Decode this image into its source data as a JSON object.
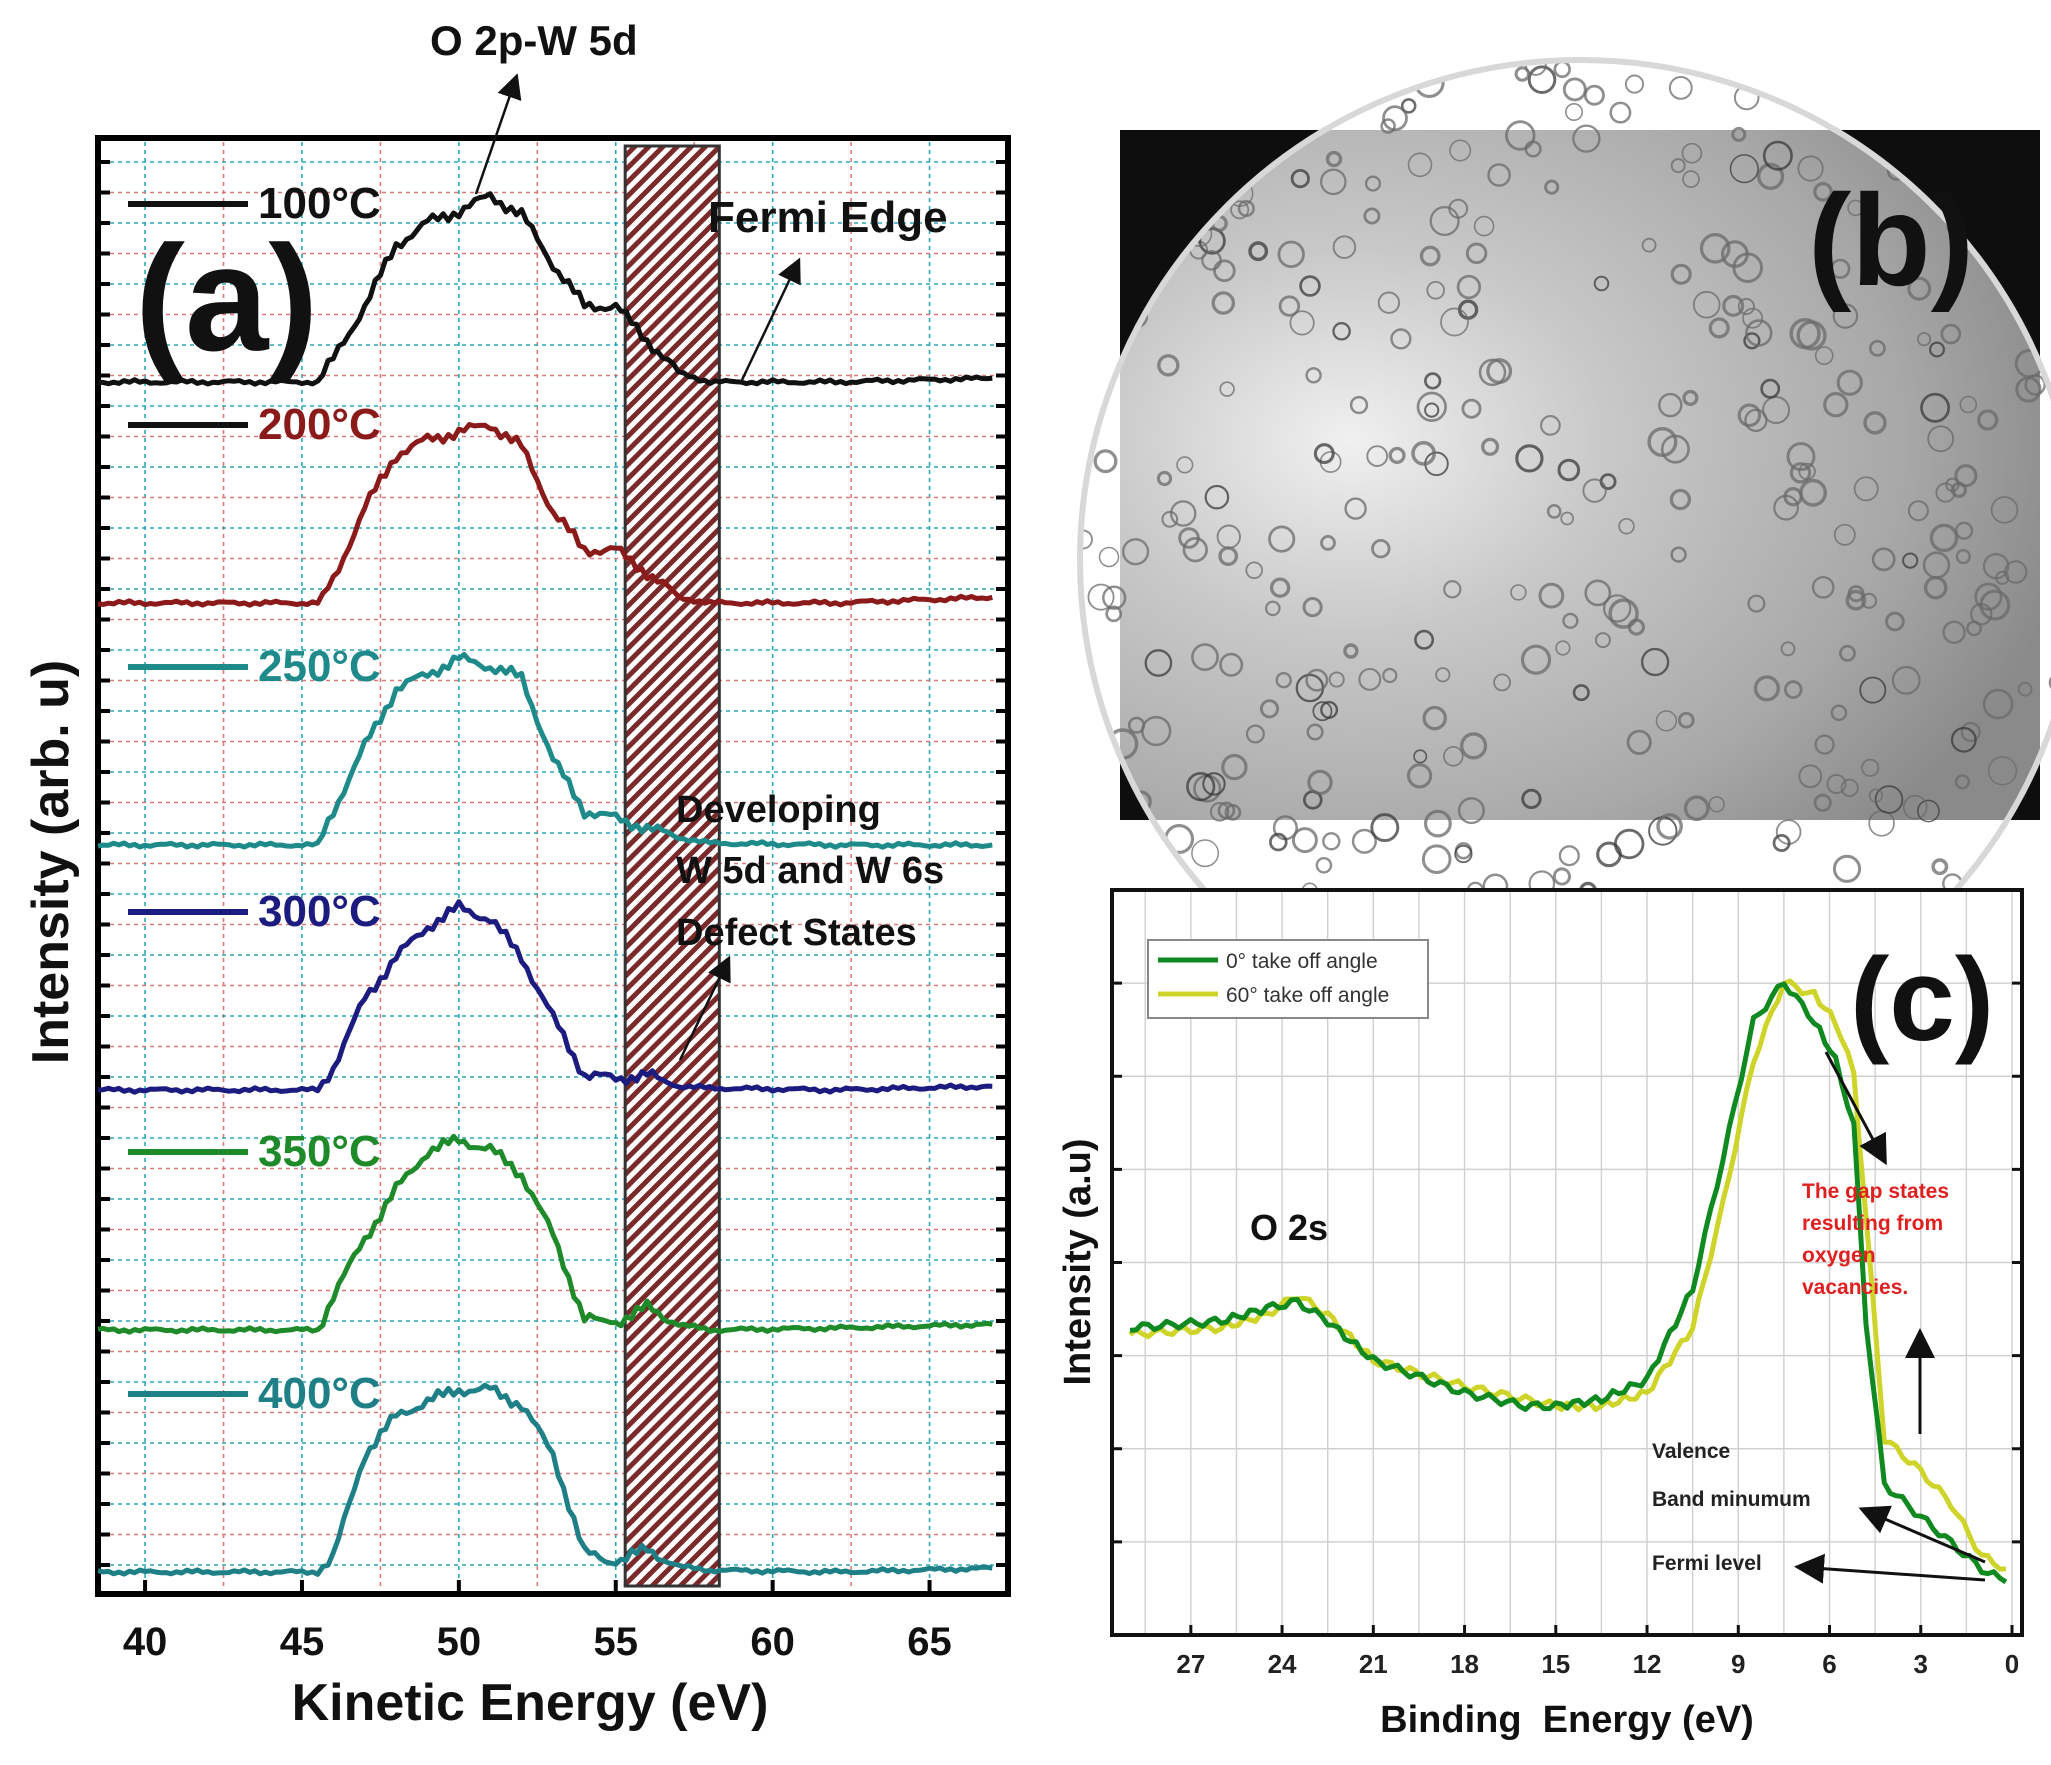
{
  "figure": {
    "panel_a_label": "(a)",
    "panel_b_label": "(b)",
    "panel_c_label": "(c)"
  },
  "colors": {
    "c100": "#111111",
    "c200": "#8b1a1a",
    "c250": "#1f8a8a",
    "c300": "#1c1c80",
    "c350": "#1f8a2a",
    "c400": "#1f7f86",
    "c0deg": "#108a20",
    "c60deg": "#cfd42a",
    "gap": "#e02020"
  },
  "chart_data": [
    {
      "type": "line",
      "panel": "a",
      "xlabel": "Kinetic Energy (eV)",
      "ylabel": "Intensity (arb. u)",
      "xlim": [
        38.5,
        67.5
      ],
      "xticks": [
        "40",
        "45",
        "50",
        "55",
        "60",
        "65"
      ],
      "highlight_band": [
        55.3,
        58.3
      ],
      "annotations": {
        "peak": "O 2p-W 5d",
        "fermi": "Fermi Edge",
        "defect_line1": "Developing",
        "defect_line2": "W 5d and W 6s",
        "defect_line3": "Defect States"
      },
      "x": [
        38.5,
        45.5,
        46.0,
        47.0,
        48.0,
        49.0,
        50.0,
        51.0,
        52.0,
        53.0,
        54.0,
        55.0,
        56.0,
        57.0,
        58.0,
        62.0,
        67.0
      ],
      "series": [
        {
          "name": "100°C",
          "values": [
            0,
            0,
            0.12,
            0.4,
            0.72,
            0.84,
            0.9,
            0.98,
            0.88,
            0.62,
            0.4,
            0.4,
            0.22,
            0.05,
            0.0,
            0.0,
            0.02
          ]
        },
        {
          "name": "200°C",
          "values": [
            0,
            0,
            0.12,
            0.5,
            0.78,
            0.86,
            0.9,
            0.94,
            0.82,
            0.48,
            0.28,
            0.28,
            0.16,
            0.03,
            0.0,
            0.0,
            0.03
          ]
        },
        {
          "name": "250°C",
          "values": [
            0,
            0,
            0.18,
            0.52,
            0.82,
            0.9,
            0.98,
            0.94,
            0.88,
            0.45,
            0.18,
            0.14,
            0.09,
            0.04,
            0.01,
            0.0,
            0.0
          ]
        },
        {
          "name": "300°C",
          "values": [
            0,
            0,
            0.12,
            0.48,
            0.7,
            0.86,
            0.96,
            0.9,
            0.7,
            0.38,
            0.08,
            0.06,
            0.08,
            0.02,
            0.01,
            0.0,
            0.02
          ]
        },
        {
          "name": "350°C",
          "values": [
            0,
            0,
            0.18,
            0.48,
            0.74,
            0.94,
            1.0,
            0.95,
            0.82,
            0.5,
            0.06,
            0.04,
            0.12,
            0.03,
            0.0,
            0.01,
            0.03
          ]
        },
        {
          "name": "400°C",
          "values": [
            0,
            0,
            0.08,
            0.62,
            0.82,
            0.9,
            0.96,
            0.96,
            0.88,
            0.62,
            0.1,
            0.05,
            0.12,
            0.03,
            0.01,
            0.0,
            0.02
          ]
        }
      ]
    },
    {
      "type": "line",
      "panel": "c",
      "xlabel": "Binding  Energy (eV)",
      "ylabel": "Intensity (a.u)",
      "xlim": [
        29,
        0
      ],
      "xticks": [
        "27",
        "24",
        "21",
        "18",
        "15",
        "12",
        "9",
        "6",
        "3",
        "0"
      ],
      "ylim": [
        0,
        1
      ],
      "annotations": {
        "o2s": "O 2s",
        "gap1": "The gap states",
        "gap2": "resulting from",
        "gap3": "oxygen",
        "gap4": "vacancies.",
        "valence": "Valence",
        "bandmin": "Band minumum",
        "fermi": "Fermi level"
      },
      "series": [
        {
          "name": "0° take off angle",
          "x": [
            29,
            26,
            24.5,
            23.5,
            22.5,
            21,
            18,
            16,
            15,
            13.5,
            12,
            10.5,
            9.5,
            8.5,
            7.5,
            6.5,
            5.8,
            5.2,
            4.8,
            4.2,
            3.0,
            2.0,
            1.0,
            0.2
          ],
          "values": [
            0.39,
            0.4,
            0.42,
            0.43,
            0.4,
            0.34,
            0.29,
            0.27,
            0.27,
            0.28,
            0.31,
            0.45,
            0.65,
            0.86,
            0.92,
            0.86,
            0.8,
            0.7,
            0.4,
            0.15,
            0.1,
            0.06,
            0.02,
            0.0
          ]
        },
        {
          "name": "60° take off angle",
          "x": [
            29,
            26,
            24.5,
            23.5,
            22.5,
            21,
            18,
            16,
            15,
            13.5,
            12,
            10.5,
            9.5,
            8.5,
            7.5,
            6.5,
            5.8,
            5.2,
            4.8,
            4.2,
            3.0,
            2.0,
            1.0,
            0.2
          ],
          "values": [
            0.38,
            0.39,
            0.41,
            0.44,
            0.41,
            0.34,
            0.3,
            0.28,
            0.27,
            0.27,
            0.29,
            0.39,
            0.58,
            0.8,
            0.92,
            0.9,
            0.86,
            0.78,
            0.56,
            0.22,
            0.17,
            0.12,
            0.04,
            0.02
          ]
        }
      ]
    }
  ]
}
